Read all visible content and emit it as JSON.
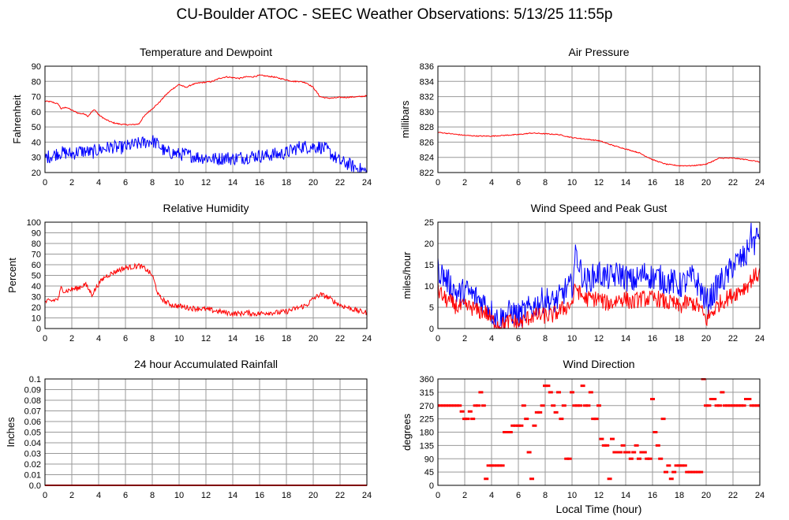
{
  "title": "CU-Boulder ATOC - SEEC Weather Observations: 5/13/25 11:55p",
  "chart_data": [
    {
      "id": "temp",
      "type": "line",
      "title": "Temperature and Dewpoint",
      "xlabel": "",
      "ylabel": "Fahrenheit",
      "xlim": [
        0,
        24
      ],
      "ylim": [
        20,
        90
      ],
      "xticks": [
        "0",
        "2",
        "4",
        "6",
        "8",
        "10",
        "12",
        "14",
        "16",
        "18",
        "20",
        "22",
        "24"
      ],
      "yticks": [
        "20",
        "30",
        "40",
        "50",
        "60",
        "70",
        "80",
        "90"
      ],
      "grid": true,
      "series": [
        {
          "color": "#ff0000",
          "noise": 0.4,
          "x": [
            0,
            0.5,
            1,
            1.2,
            1.6,
            2,
            2.5,
            3,
            3.2,
            3.5,
            3.7,
            4,
            4.5,
            5,
            5.5,
            6,
            6.5,
            7,
            7.3,
            7.6,
            8,
            8.5,
            9,
            9.5,
            10,
            10.5,
            11,
            11.5,
            12,
            12.5,
            13,
            13.5,
            14,
            14.5,
            15,
            15.5,
            16,
            16.5,
            17,
            17.5,
            18,
            18.5,
            19,
            19.5,
            20,
            20.5,
            21,
            21.5,
            22,
            22.5,
            23,
            23.5,
            24
          ],
          "y": [
            67,
            66.5,
            65,
            62,
            63,
            61,
            59,
            58.5,
            57,
            60,
            61.5,
            58,
            55,
            53,
            52,
            51.5,
            51.5,
            52,
            56,
            59,
            62,
            66,
            71,
            75,
            78,
            76,
            78,
            79,
            79.5,
            80,
            82,
            83,
            82.5,
            82,
            83,
            83,
            84,
            83.5,
            83,
            82,
            81,
            80,
            80,
            79,
            76,
            70,
            69,
            69,
            69.5,
            69.5,
            69.8,
            70,
            70.5
          ]
        },
        {
          "color": "#0000ff",
          "noise": 4.5,
          "x": [
            0,
            0.5,
            1,
            1.5,
            2,
            2.5,
            3,
            3.5,
            4,
            4.5,
            5,
            5.5,
            6,
            6.5,
            7,
            7.5,
            8,
            8.5,
            9,
            9.5,
            10,
            10.5,
            11,
            11.5,
            12,
            12.5,
            13,
            13.5,
            14,
            14.5,
            15,
            15.5,
            16,
            16.5,
            17,
            17.5,
            18,
            18.5,
            19,
            19.5,
            20,
            20.5,
            21,
            21.5,
            22,
            22.5,
            23,
            23.5,
            24
          ],
          "y": [
            30,
            31,
            33,
            33,
            32,
            34,
            34,
            33,
            35,
            36,
            37,
            36,
            37,
            38,
            39,
            40,
            41,
            38,
            33,
            33,
            32,
            32,
            31,
            30,
            30,
            29,
            29,
            30,
            29,
            30,
            30,
            31,
            31,
            31,
            32,
            32,
            33,
            35,
            37,
            37,
            37,
            37,
            35,
            31,
            27,
            26,
            24,
            22,
            20.5
          ]
        }
      ]
    },
    {
      "id": "pressure",
      "type": "line",
      "title": "Air Pressure",
      "xlabel": "",
      "ylabel": "millibars",
      "xlim": [
        0,
        24
      ],
      "ylim": [
        822,
        836
      ],
      "xticks": [
        "0",
        "2",
        "4",
        "6",
        "8",
        "10",
        "12",
        "14",
        "16",
        "18",
        "20",
        "22",
        "24"
      ],
      "yticks": [
        "822",
        "824",
        "826",
        "828",
        "830",
        "832",
        "834",
        "836"
      ],
      "grid": true,
      "series": [
        {
          "color": "#ff0000",
          "noise": 0.06,
          "x": [
            0,
            1,
            2,
            3,
            4,
            5,
            6,
            7,
            8,
            9,
            10,
            11,
            12,
            13,
            14,
            15,
            16,
            17,
            18,
            19,
            20,
            20.5,
            21,
            22,
            23,
            24
          ],
          "y": [
            827.3,
            827.1,
            826.9,
            826.8,
            826.8,
            826.9,
            827,
            827.2,
            827.1,
            827,
            826.6,
            826.4,
            826.2,
            825.6,
            825.1,
            824.6,
            823.7,
            823.1,
            822.9,
            822.9,
            823.1,
            823.5,
            823.9,
            823.9,
            823.7,
            823.4
          ]
        }
      ]
    },
    {
      "id": "humidity",
      "type": "line",
      "title": "Relative Humidity",
      "xlabel": "",
      "ylabel": "Percent",
      "xlim": [
        0,
        24
      ],
      "ylim": [
        0,
        100
      ],
      "xticks": [
        "0",
        "2",
        "4",
        "6",
        "8",
        "10",
        "12",
        "14",
        "16",
        "18",
        "20",
        "22",
        "24"
      ],
      "yticks": [
        "0",
        "10",
        "20",
        "30",
        "40",
        "50",
        "60",
        "70",
        "80",
        "90",
        "100"
      ],
      "grid": true,
      "series": [
        {
          "color": "#ff0000",
          "noise": 2.5,
          "x": [
            0,
            0.5,
            1,
            1.2,
            1.5,
            2,
            2.5,
            3,
            3.5,
            4,
            4.5,
            5,
            5.5,
            6,
            6.5,
            7,
            7.5,
            8,
            8.5,
            9,
            9.5,
            10,
            10.5,
            11,
            11.5,
            12,
            12.5,
            13,
            13.5,
            14,
            14.5,
            15,
            15.5,
            16,
            16.5,
            17,
            17.5,
            18,
            18.5,
            19,
            19.5,
            20,
            20.5,
            21,
            21.5,
            22,
            22.5,
            23,
            23.5,
            24
          ],
          "y": [
            25,
            26,
            28,
            38,
            35,
            37,
            38,
            42,
            32,
            42,
            49,
            52,
            55,
            57,
            58,
            59,
            56,
            50,
            30,
            25,
            22,
            21,
            20,
            19,
            19,
            18,
            17,
            16,
            15,
            14,
            14,
            15,
            14,
            14,
            15,
            15,
            15,
            16,
            18,
            20,
            22,
            28,
            32,
            30,
            26,
            22,
            20,
            18,
            16,
            15
          ]
        }
      ]
    },
    {
      "id": "wind",
      "type": "line",
      "title": "Wind Speed and Peak Gust",
      "xlabel": "",
      "ylabel": "miles/hour",
      "xlim": [
        0,
        24
      ],
      "ylim": [
        0,
        25
      ],
      "xticks": [
        "0",
        "2",
        "4",
        "6",
        "8",
        "10",
        "12",
        "14",
        "16",
        "18",
        "20",
        "22",
        "24"
      ],
      "yticks": [
        "0",
        "5",
        "10",
        "15",
        "20",
        "25"
      ],
      "grid": true,
      "series": [
        {
          "color": "#0000ff",
          "noise": 3.2,
          "x": [
            0,
            0.5,
            1,
            1.5,
            2,
            2.5,
            3,
            3.5,
            4,
            4.5,
            5,
            5.5,
            6,
            6.5,
            7,
            7.5,
            8,
            8.5,
            9,
            9.5,
            10,
            10.3,
            10.6,
            11,
            11.5,
            12,
            12.5,
            13,
            13.5,
            14,
            14.5,
            15,
            15.5,
            16,
            16.5,
            17,
            17.5,
            18,
            18.5,
            19,
            19.5,
            20,
            20.5,
            21,
            21.5,
            22,
            22.5,
            23,
            23.3,
            23.6,
            24
          ],
          "y": [
            14,
            12,
            10,
            8,
            9,
            8,
            7,
            6,
            4,
            2,
            3,
            4,
            3,
            4,
            5,
            6,
            7,
            6,
            7,
            9,
            10,
            18,
            14,
            11,
            12,
            13,
            12,
            12,
            13,
            12,
            11,
            12,
            13,
            12,
            12,
            11,
            11,
            10,
            11,
            12,
            10,
            6,
            8,
            11,
            12,
            15,
            16,
            17,
            22,
            20,
            23
          ]
        },
        {
          "color": "#ff0000",
          "noise": 2.0,
          "x": [
            0,
            0.5,
            1,
            1.5,
            2,
            2.5,
            3,
            3.5,
            4,
            4.5,
            5,
            5.5,
            6,
            6.5,
            7,
            7.5,
            8,
            8.5,
            9,
            9.5,
            10,
            10.3,
            10.6,
            11,
            11.5,
            12,
            12.5,
            13,
            13.5,
            14,
            14.5,
            15,
            15.5,
            16,
            16.5,
            17,
            17.5,
            18,
            18.5,
            19,
            19.5,
            20,
            20.5,
            21,
            21.5,
            22,
            22.5,
            23,
            23.5,
            24
          ],
          "y": [
            9,
            7,
            6,
            5,
            5,
            5,
            4,
            4,
            2,
            1,
            1,
            2,
            1,
            2,
            3,
            3,
            3,
            3,
            4,
            5,
            6,
            10,
            8,
            7,
            7,
            7,
            6,
            6,
            7,
            7,
            6,
            7,
            7,
            7,
            7,
            6,
            6,
            5,
            6,
            6,
            5,
            2,
            4,
            6,
            7,
            8,
            9,
            10,
            12,
            13
          ]
        }
      ]
    },
    {
      "id": "rain",
      "type": "line",
      "title": "24 hour Accumulated Rainfall",
      "xlabel": "",
      "ylabel": "Inches",
      "xlim": [
        0,
        24
      ],
      "ylim": [
        0,
        0.1
      ],
      "xticks": [
        "0",
        "2",
        "4",
        "6",
        "8",
        "10",
        "12",
        "14",
        "16",
        "18",
        "20",
        "22",
        "24"
      ],
      "yticks": [
        "0.0",
        "0.01",
        "0.02",
        "0.03",
        "0.04",
        "0.05",
        "0.06",
        "0.07",
        "0.08",
        "0.09",
        "0.1"
      ],
      "grid": true,
      "series": [
        {
          "color": "#ff0000",
          "noise": 0,
          "x": [
            0,
            24
          ],
          "y": [
            0,
            0
          ]
        }
      ]
    },
    {
      "id": "direction",
      "type": "scatter",
      "title": "Wind Direction",
      "xlabel": "Local Time (hour)",
      "ylabel": "degrees",
      "xlim": [
        0,
        24
      ],
      "ylim": [
        0,
        360
      ],
      "xticks": [
        "0",
        "2",
        "4",
        "6",
        "8",
        "10",
        "12",
        "14",
        "16",
        "18",
        "20",
        "22",
        "24"
      ],
      "yticks": [
        "0",
        "45",
        "90",
        "135",
        "180",
        "225",
        "270",
        "315",
        "360"
      ],
      "grid": true,
      "series": [
        {
          "color": "#ff0000",
          "noise": 0,
          "x": [
            0,
            0.2,
            0.4,
            0.6,
            0.8,
            1,
            1.2,
            1.4,
            1.6,
            1.8,
            2,
            2.2,
            2.4,
            2.6,
            2.8,
            3,
            3.2,
            3.4,
            3.6,
            3.8,
            4,
            4.2,
            4.4,
            4.6,
            4.8,
            5,
            5.2,
            5.4,
            5.6,
            5.8,
            6,
            6.2,
            6.4,
            6.6,
            6.8,
            7,
            7.2,
            7.4,
            7.6,
            7.8,
            8,
            8.2,
            8.4,
            8.6,
            8.8,
            9,
            9.2,
            9.4,
            9.6,
            9.8,
            10,
            10.2,
            10.4,
            10.6,
            10.8,
            11,
            11.2,
            11.4,
            11.6,
            11.8,
            12,
            12.2,
            12.4,
            12.6,
            12.8,
            13,
            13.2,
            13.4,
            13.6,
            13.8,
            14,
            14.2,
            14.4,
            14.6,
            14.8,
            15,
            15.2,
            15.4,
            15.6,
            15.8,
            16,
            16.2,
            16.4,
            16.6,
            16.8,
            17,
            17.2,
            17.4,
            17.6,
            17.8,
            18,
            18.2,
            18.4,
            18.6,
            18.8,
            19,
            19.2,
            19.4,
            19.6,
            19.8,
            20,
            20.2,
            20.4,
            20.6,
            20.8,
            21,
            21.2,
            21.4,
            21.6,
            21.8,
            22,
            22.2,
            22.4,
            22.6,
            22.8,
            23,
            23.2,
            23.4,
            23.6,
            23.8,
            24
          ],
          "y": [
            270,
            270,
            270,
            270,
            270,
            270,
            270,
            270,
            270,
            250,
            225,
            225,
            250,
            225,
            270,
            270,
            315,
            270,
            22,
            67,
            67,
            67,
            67,
            67,
            67,
            180,
            180,
            180,
            202,
            202,
            202,
            202,
            270,
            225,
            112,
            22,
            202,
            247,
            247,
            270,
            337,
            337,
            315,
            270,
            247,
            315,
            225,
            270,
            90,
            90,
            315,
            270,
            270,
            270,
            337,
            270,
            270,
            315,
            225,
            225,
            270,
            157,
            135,
            135,
            22,
            157,
            112,
            112,
            112,
            135,
            112,
            112,
            90,
            112,
            135,
            90,
            112,
            112,
            90,
            90,
            292,
            180,
            135,
            90,
            225,
            45,
            67,
            22,
            45,
            67,
            67,
            67,
            67,
            45,
            45,
            45,
            45,
            45,
            45,
            360,
            270,
            270,
            292,
            292,
            270,
            270,
            315,
            270,
            270,
            270,
            270,
            270,
            270,
            270,
            270,
            292,
            292,
            270,
            270,
            270,
            270
          ]
        }
      ]
    }
  ]
}
